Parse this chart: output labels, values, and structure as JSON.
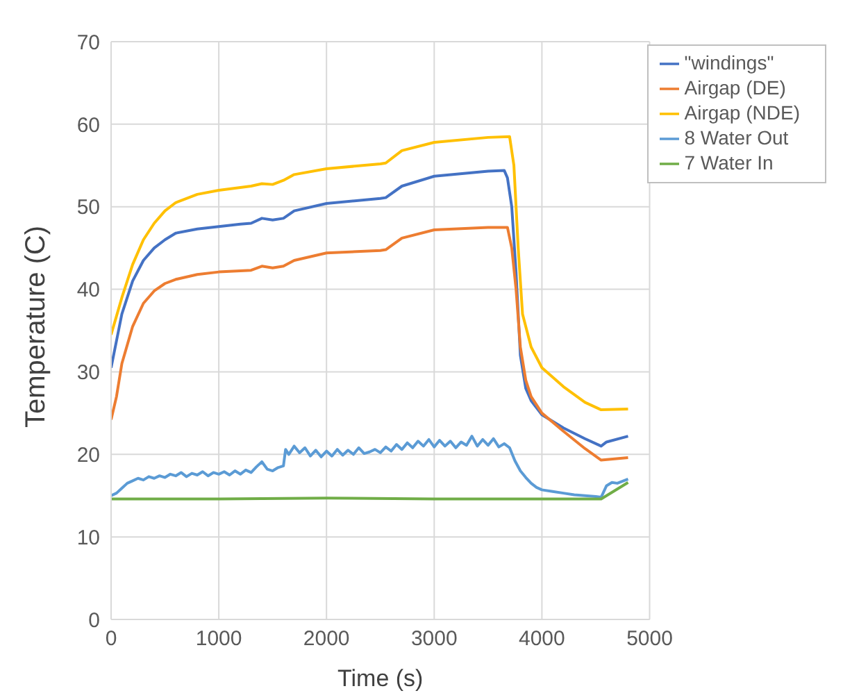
{
  "chart_data": {
    "type": "line",
    "xlabel": "Time (s)",
    "ylabel": "Temperature (C)",
    "xlim": [
      0,
      5000
    ],
    "xticks": [
      0,
      1000,
      2000,
      3000,
      4000,
      5000
    ],
    "ylim": [
      0,
      70
    ],
    "yticks": [
      0,
      10,
      20,
      30,
      40,
      50,
      60,
      70
    ],
    "grid": true,
    "legend": "top right",
    "marker": "none",
    "line_style": "solid",
    "series": [
      {
        "name": "\"windings\"",
        "color": "#4472c4",
        "x": [
          0,
          100,
          200,
          300,
          400,
          500,
          600,
          800,
          1000,
          1200,
          1300,
          1400,
          1500,
          1600,
          1700,
          2000,
          2500,
          2550,
          2700,
          3000,
          3500,
          3650,
          3680,
          3720,
          3760,
          3800,
          3850,
          3900,
          4000,
          4200,
          4400,
          4550,
          4600,
          4800
        ],
        "values": [
          30.5,
          37,
          41,
          43.5,
          45,
          46,
          46.8,
          47.3,
          47.6,
          47.9,
          48,
          48.6,
          48.4,
          48.6,
          49.5,
          50.4,
          51,
          51.1,
          52.5,
          53.7,
          54.3,
          54.4,
          53.5,
          50,
          42,
          32,
          28,
          26.5,
          24.8,
          23.2,
          21.9,
          21,
          21.5,
          22.2
        ]
      },
      {
        "name": "Airgap (DE)",
        "color": "#ed7d31",
        "x": [
          0,
          50,
          100,
          200,
          300,
          400,
          500,
          600,
          800,
          1000,
          1300,
          1400,
          1500,
          1600,
          1700,
          2000,
          2500,
          2550,
          2700,
          3000,
          3500,
          3680,
          3720,
          3760,
          3800,
          3850,
          3900,
          4000,
          4200,
          4400,
          4550,
          4800
        ],
        "values": [
          24.2,
          27,
          31,
          35.5,
          38.3,
          39.8,
          40.7,
          41.2,
          41.8,
          42.1,
          42.3,
          42.8,
          42.6,
          42.8,
          43.5,
          44.4,
          44.7,
          44.8,
          46.2,
          47.2,
          47.5,
          47.5,
          45,
          40,
          33,
          29,
          27,
          25,
          22.8,
          20.7,
          19.3,
          19.6
        ]
      },
      {
        "name": "Airgap (NDE)",
        "color": "#ffc000",
        "x": [
          0,
          100,
          200,
          300,
          400,
          500,
          600,
          800,
          1000,
          1300,
          1400,
          1500,
          1600,
          1700,
          2000,
          2500,
          2550,
          2700,
          3000,
          3500,
          3700,
          3740,
          3780,
          3820,
          3900,
          4000,
          4200,
          4400,
          4550,
          4800
        ],
        "values": [
          34.5,
          39,
          43,
          46,
          48,
          49.5,
          50.5,
          51.5,
          52,
          52.5,
          52.8,
          52.7,
          53.2,
          53.9,
          54.6,
          55.2,
          55.3,
          56.8,
          57.8,
          58.4,
          58.5,
          55,
          45,
          37,
          33,
          30.5,
          28.2,
          26.3,
          25.4,
          25.5
        ]
      },
      {
        "name": "8 Water Out",
        "color": "#5b9bd5",
        "x": [
          0,
          50,
          100,
          150,
          200,
          250,
          300,
          350,
          400,
          450,
          500,
          550,
          600,
          650,
          700,
          750,
          800,
          850,
          900,
          950,
          1000,
          1050,
          1100,
          1150,
          1200,
          1250,
          1300,
          1350,
          1400,
          1450,
          1500,
          1550,
          1600,
          1620,
          1650,
          1700,
          1750,
          1800,
          1850,
          1900,
          1950,
          2000,
          2050,
          2100,
          2150,
          2200,
          2250,
          2300,
          2350,
          2400,
          2450,
          2500,
          2550,
          2600,
          2650,
          2700,
          2750,
          2800,
          2850,
          2900,
          2950,
          3000,
          3050,
          3100,
          3150,
          3200,
          3250,
          3300,
          3350,
          3400,
          3450,
          3500,
          3550,
          3600,
          3650,
          3700,
          3750,
          3800,
          3850,
          3900,
          3950,
          4000,
          4100,
          4200,
          4300,
          4400,
          4500,
          4550,
          4600,
          4650,
          4700,
          4800
        ],
        "values": [
          15,
          15.3,
          15.9,
          16.5,
          16.8,
          17.1,
          16.9,
          17.3,
          17.1,
          17.4,
          17.2,
          17.6,
          17.4,
          17.8,
          17.3,
          17.7,
          17.5,
          17.9,
          17.4,
          17.8,
          17.6,
          17.9,
          17.5,
          18,
          17.6,
          18.1,
          17.8,
          18.5,
          19.1,
          18.2,
          18,
          18.4,
          18.6,
          20.6,
          20,
          21,
          20.2,
          20.8,
          19.8,
          20.5,
          19.7,
          20.4,
          19.8,
          20.6,
          19.9,
          20.5,
          20,
          20.8,
          20.1,
          20.3,
          20.6,
          20.2,
          20.9,
          20.4,
          21.2,
          20.6,
          21.4,
          20.8,
          21.6,
          21,
          21.8,
          20.9,
          21.7,
          21,
          21.6,
          20.8,
          21.5,
          21.1,
          22.2,
          21,
          21.8,
          21.1,
          21.9,
          20.9,
          21.3,
          20.8,
          19.2,
          18,
          17.2,
          16.5,
          16,
          15.7,
          15.5,
          15.3,
          15.1,
          15,
          14.9,
          14.8,
          16.2,
          16.6,
          16.5,
          17
        ]
      },
      {
        "name": "7 Water In",
        "color": "#70ad47",
        "x": [
          0,
          1000,
          2000,
          3000,
          4000,
          4550,
          4600,
          4700,
          4800
        ],
        "values": [
          14.6,
          14.6,
          14.7,
          14.6,
          14.6,
          14.6,
          15,
          15.8,
          16.6
        ]
      }
    ]
  }
}
